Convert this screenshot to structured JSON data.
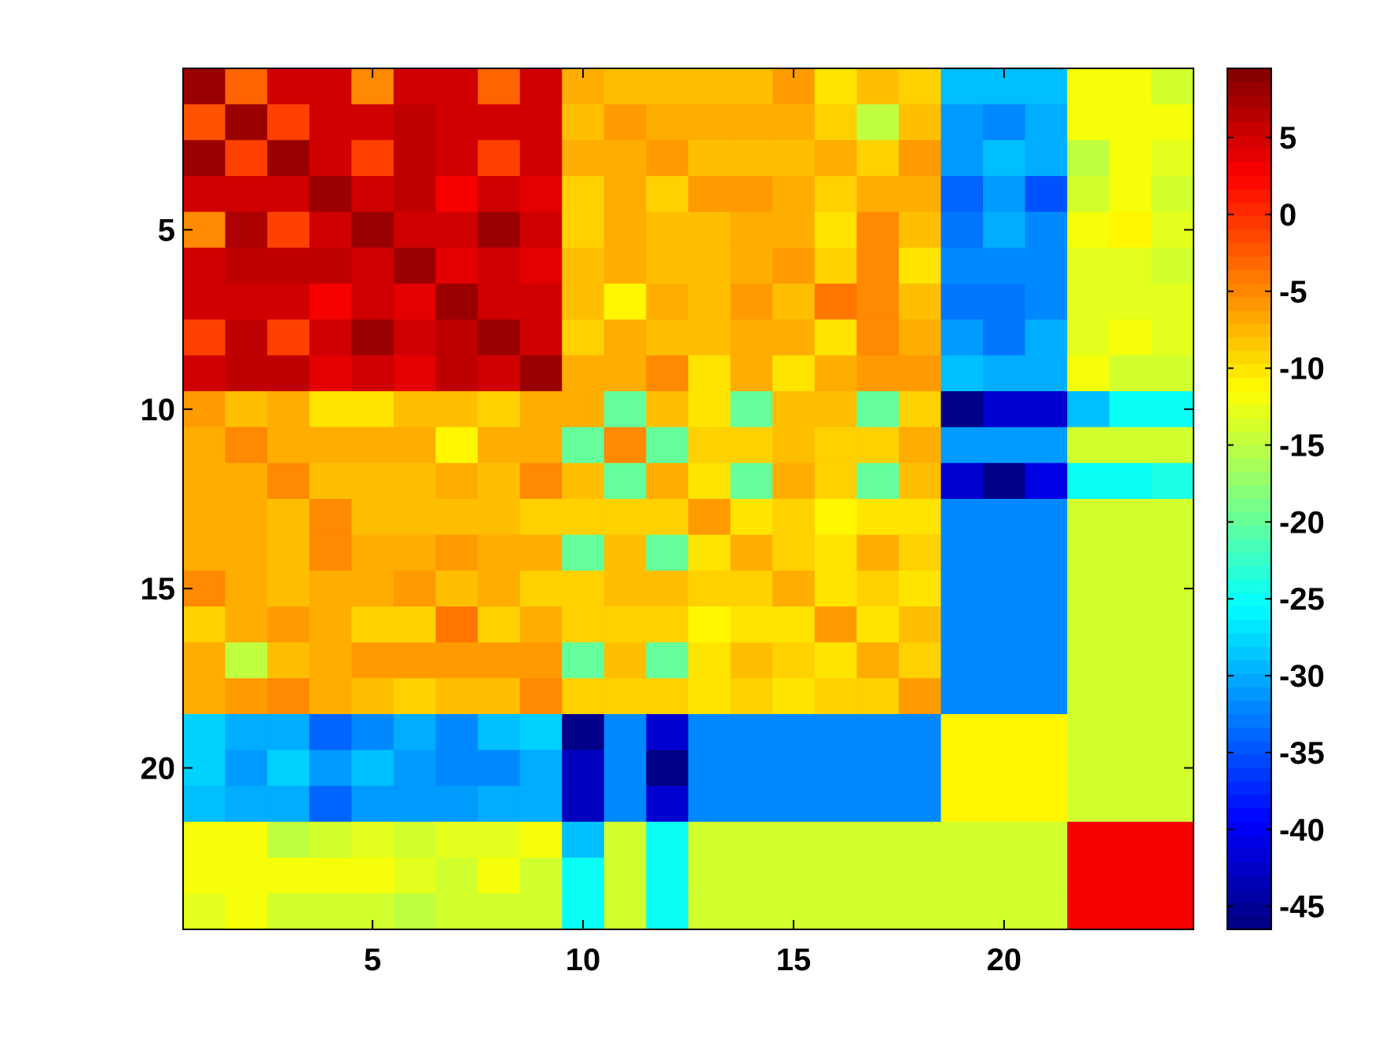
{
  "chart_data": {
    "type": "heatmap",
    "title": "",
    "xlabel": "",
    "ylabel": "",
    "x_ticks": [
      5,
      10,
      15,
      20
    ],
    "y_ticks": [
      5,
      10,
      15,
      20
    ],
    "xlim": [
      0.5,
      24.5
    ],
    "ylim": [
      0.5,
      24.5
    ],
    "colormap": "jet",
    "colorbar": {
      "range": [
        -46.5,
        9.5
      ],
      "ticks": [
        5,
        0,
        -5,
        -10,
        -15,
        -20,
        -25,
        -30,
        -35,
        -40,
        -45
      ]
    },
    "matrix": [
      [
        8,
        -3,
        5,
        5,
        -5,
        5,
        5,
        -3,
        5,
        -7,
        -8,
        -8,
        -8,
        -8,
        -6,
        -10,
        -8,
        -9,
        -29,
        -29,
        -29,
        -12,
        -12,
        -14
      ],
      [
        -2,
        8,
        -1,
        5,
        5,
        6,
        5,
        5,
        5,
        -8,
        -6,
        -7,
        -7,
        -7,
        -7,
        -9,
        -15,
        -8,
        -31,
        -32,
        -30,
        -12,
        -12,
        -12
      ],
      [
        8,
        -1,
        8,
        5,
        -1,
        6,
        5,
        -1,
        5,
        -7,
        -7,
        -6,
        -8,
        -8,
        -8,
        -7,
        -9,
        -6,
        -31,
        -29,
        -30,
        -15,
        -12,
        -13
      ],
      [
        5,
        5,
        5,
        8,
        5,
        6,
        3,
        5,
        4,
        -9,
        -7,
        -9,
        -6,
        -6,
        -7,
        -9,
        -7,
        -7,
        -34,
        -31,
        -35,
        -14,
        -12,
        -14
      ],
      [
        -5,
        7,
        -1,
        5,
        8,
        5,
        5,
        8,
        5,
        -9,
        -7,
        -8,
        -8,
        -7,
        -7,
        -10,
        -5,
        -8,
        -33,
        -30,
        -32,
        -12,
        -11,
        -13
      ],
      [
        5,
        6,
        6,
        6,
        5,
        8,
        4,
        5,
        4,
        -8,
        -7,
        -8,
        -8,
        -7,
        -6,
        -9,
        -5,
        -10,
        -32,
        -32,
        -32,
        -13,
        -13,
        -14
      ],
      [
        5,
        5,
        5,
        3,
        5,
        4,
        8,
        5,
        5,
        -8,
        -11,
        -7,
        -8,
        -6,
        -8,
        -4,
        -5,
        -8,
        -33,
        -33,
        -32,
        -13,
        -13,
        -13
      ],
      [
        -1,
        6,
        -1,
        5,
        8,
        5,
        6,
        8,
        5,
        -9,
        -7,
        -8,
        -8,
        -7,
        -7,
        -10,
        -5,
        -7,
        -31,
        -33,
        -30,
        -13,
        -12,
        -13
      ],
      [
        5,
        6,
        6,
        4,
        5,
        4,
        6,
        5,
        8,
        -7,
        -7,
        -5,
        -10,
        -7,
        -10,
        -7,
        -6,
        -6,
        -29,
        -30,
        -30,
        -12,
        -14,
        -14
      ],
      [
        -6,
        -8,
        -7,
        -10,
        -10,
        -8,
        -8,
        -9,
        -7,
        -7,
        -20,
        -8,
        -10,
        -20,
        -8,
        -8,
        -20,
        -9,
        -46,
        -42,
        -42,
        -29,
        -25,
        -25
      ],
      [
        -7,
        -5,
        -7,
        -7,
        -7,
        -7,
        -11,
        -7,
        -7,
        -20,
        -5,
        -20,
        -9,
        -9,
        -8,
        -9,
        -9,
        -7,
        -31,
        -31,
        -31,
        -14,
        -14,
        -14
      ],
      [
        -7,
        -7,
        -5,
        -8,
        -8,
        -8,
        -7,
        -8,
        -5,
        -8,
        -20,
        -7,
        -10,
        -20,
        -7,
        -9,
        -20,
        -8,
        -42,
        -46,
        -41,
        -25,
        -25,
        -24
      ],
      [
        -7,
        -7,
        -8,
        -5,
        -8,
        -8,
        -8,
        -8,
        -9,
        -9,
        -9,
        -9,
        -6,
        -10,
        -9,
        -11,
        -10,
        -10,
        -32,
        -32,
        -32,
        -14,
        -14,
        -14
      ],
      [
        -7,
        -7,
        -8,
        -5,
        -7,
        -7,
        -6,
        -7,
        -7,
        -20,
        -8,
        -20,
        -10,
        -7,
        -9,
        -10,
        -7,
        -9,
        -32,
        -32,
        -32,
        -14,
        -14,
        -14
      ],
      [
        -5,
        -7,
        -8,
        -7,
        -7,
        -6,
        -8,
        -7,
        -9,
        -9,
        -8,
        -8,
        -9,
        -9,
        -7,
        -10,
        -9,
        -10,
        -32,
        -32,
        -32,
        -14,
        -14,
        -14
      ],
      [
        -9,
        -7,
        -6,
        -7,
        -9,
        -9,
        -4,
        -9,
        -7,
        -9,
        -9,
        -9,
        -11,
        -10,
        -10,
        -6,
        -10,
        -8,
        -32,
        -32,
        -32,
        -14,
        -14,
        -14
      ],
      [
        -7,
        -15,
        -8,
        -7,
        -6,
        -6,
        -6,
        -6,
        -6,
        -20,
        -8,
        -20,
        -10,
        -8,
        -9,
        -10,
        -7,
        -9,
        -32,
        -32,
        -32,
        -14,
        -14,
        -14
      ],
      [
        -7,
        -6,
        -5,
        -7,
        -8,
        -9,
        -8,
        -8,
        -5,
        -9,
        -9,
        -9,
        -10,
        -9,
        -10,
        -9,
        -9,
        -6,
        -32,
        -32,
        -32,
        -14,
        -14,
        -14
      ],
      [
        -28,
        -30,
        -30,
        -34,
        -32,
        -30,
        -32,
        -29,
        -28,
        -46,
        -32,
        -42,
        -32,
        -32,
        -32,
        -32,
        -32,
        -32,
        -11,
        -11,
        -11,
        -14,
        -14,
        -14
      ],
      [
        -28,
        -31,
        -28,
        -31,
        -29,
        -31,
        -32,
        -32,
        -30,
        -43,
        -32,
        -46,
        -32,
        -32,
        -32,
        -32,
        -32,
        -32,
        -11,
        -11,
        -11,
        -14,
        -14,
        -14
      ],
      [
        -29,
        -30,
        -30,
        -34,
        -31,
        -31,
        -31,
        -30,
        -30,
        -43,
        -32,
        -42,
        -32,
        -32,
        -32,
        -32,
        -32,
        -32,
        -11,
        -11,
        -11,
        -14,
        -14,
        -14
      ],
      [
        -12,
        -12,
        -15,
        -14,
        -13,
        -14,
        -13,
        -13,
        -12,
        -29,
        -14,
        -25,
        -14,
        -14,
        -14,
        -14,
        -14,
        -14,
        -14,
        -14,
        -14,
        3,
        3,
        3
      ],
      [
        -12,
        -12,
        -12,
        -12,
        -12,
        -13,
        -14,
        -12,
        -14,
        -25,
        -14,
        -25,
        -14,
        -14,
        -14,
        -14,
        -14,
        -14,
        -14,
        -14,
        -14,
        3,
        3,
        3
      ],
      [
        -13,
        -12,
        -14,
        -14,
        -14,
        -15,
        -14,
        -14,
        -14,
        -25,
        -14,
        -25,
        -14,
        -14,
        -14,
        -14,
        -14,
        -14,
        -14,
        -14,
        -14,
        3,
        3,
        3
      ]
    ]
  }
}
